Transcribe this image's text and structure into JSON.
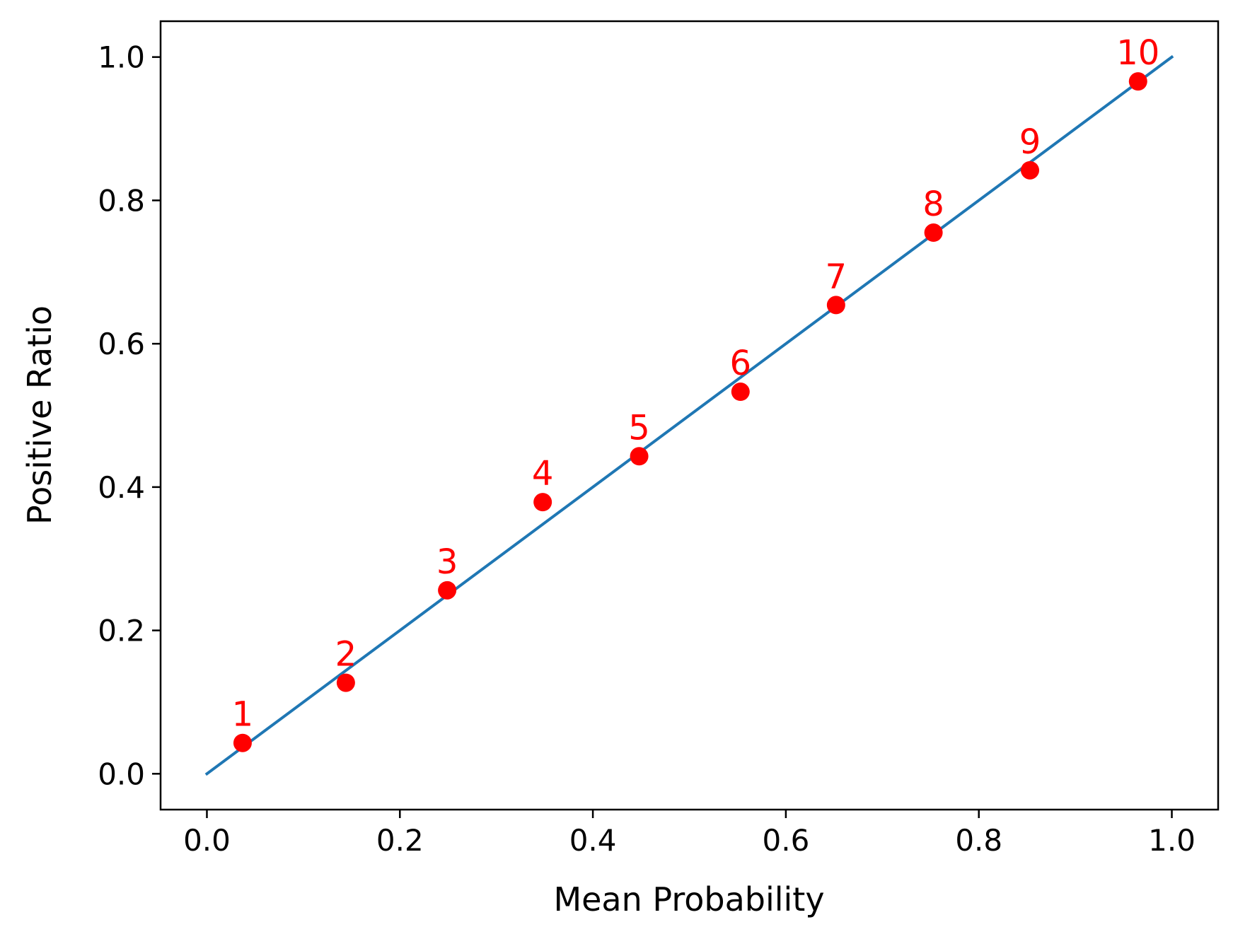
{
  "chart_data": {
    "type": "scatter",
    "title": "",
    "xlabel": "Mean Probability",
    "ylabel": "Positive Ratio",
    "xlim": [
      -0.048,
      1.048
    ],
    "ylim": [
      -0.05,
      1.05
    ],
    "xticks": [
      0.0,
      0.2,
      0.4,
      0.6,
      0.8,
      1.0
    ],
    "yticks": [
      0.0,
      0.2,
      0.4,
      0.6,
      0.8,
      1.0
    ],
    "xtick_labels": [
      "0.0",
      "0.2",
      "0.4",
      "0.6",
      "0.8",
      "1.0"
    ],
    "ytick_labels": [
      "0.0",
      "0.2",
      "0.4",
      "0.6",
      "0.8",
      "1.0"
    ],
    "grid": false,
    "reference_line": {
      "x": [
        0.0,
        1.0
      ],
      "y": [
        0.0,
        1.0
      ],
      "color": "#1f77b4"
    },
    "points": {
      "color": "#ff0000",
      "labels": [
        "1",
        "2",
        "3",
        "4",
        "5",
        "6",
        "7",
        "8",
        "9",
        "10"
      ],
      "x": [
        0.037,
        0.144,
        0.249,
        0.348,
        0.448,
        0.553,
        0.652,
        0.753,
        0.853,
        0.965
      ],
      "y": [
        0.043,
        0.127,
        0.256,
        0.379,
        0.443,
        0.533,
        0.654,
        0.755,
        0.842,
        0.966
      ]
    }
  }
}
